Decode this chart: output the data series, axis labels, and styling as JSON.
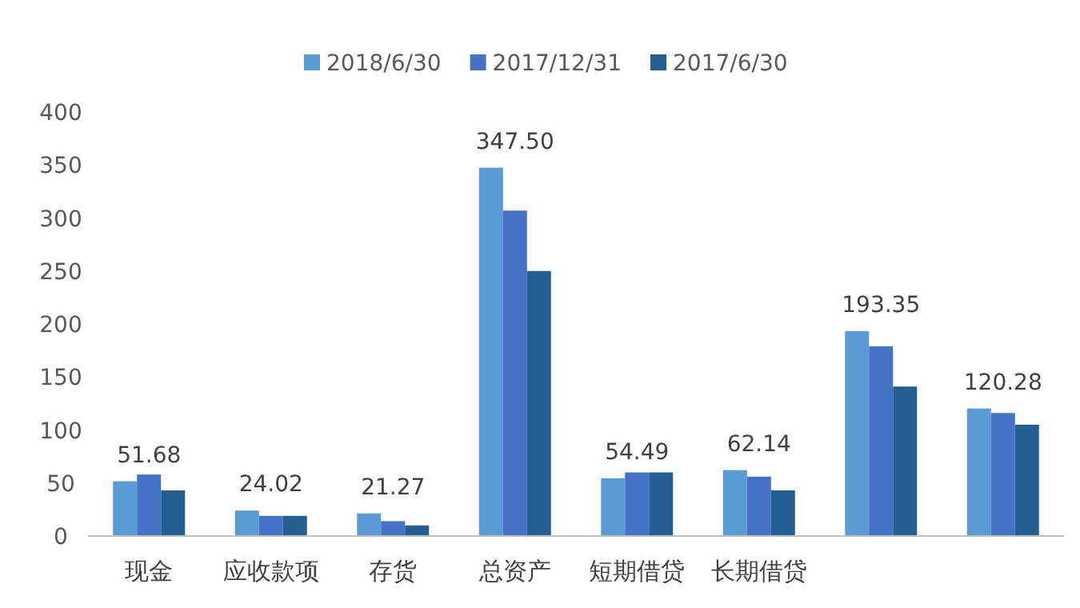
{
  "chart_data": {
    "type": "bar",
    "categories": [
      "现金",
      "应收款项",
      "存货",
      "总资产",
      "短期借贷",
      "长期借贷",
      null,
      null
    ],
    "series": [
      {
        "name": "2018/6/30",
        "color": "#5b9bd5",
        "values": [
          51.68,
          24.02,
          21.27,
          347.5,
          54.49,
          62.14,
          193.35,
          120.28
        ],
        "value_labels": [
          "51.68",
          "24.02",
          "21.27",
          "347.50",
          "54.49",
          "62.14",
          "193.35",
          "120.28"
        ]
      },
      {
        "name": "2017/12/31",
        "color": "#4472c4",
        "values": [
          58,
          19,
          14,
          307,
          60,
          56,
          179,
          116
        ]
      },
      {
        "name": "2017/6/30",
        "color": "#255e91",
        "values": [
          43,
          19,
          10,
          250,
          60,
          43,
          141,
          105
        ]
      }
    ],
    "ylim": [
      0,
      400
    ],
    "yticks": [
      0,
      50,
      100,
      150,
      200,
      250,
      300,
      350,
      400
    ],
    "grid": false,
    "legend": "top"
  }
}
